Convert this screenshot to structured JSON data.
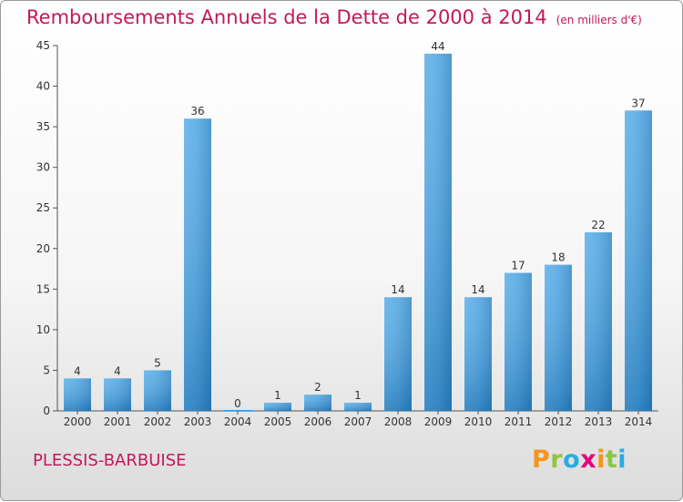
{
  "chart": {
    "title": "Remboursements Annuels de la Dette de 2000 à 2014",
    "unit": "(en milliers d'€)",
    "commune": "PLESSIS-BARBUISE",
    "brand": {
      "letters": [
        "P",
        "r",
        "o",
        "x",
        "i",
        "t",
        "i"
      ],
      "colors": [
        "#f7941d",
        "#8dc63f",
        "#29abe2",
        "#e5007e",
        "#f7941d",
        "#8dc63f",
        "#29abe2"
      ]
    }
  },
  "chart_data": {
    "type": "bar",
    "categories": [
      "2000",
      "2001",
      "2002",
      "2003",
      "2004",
      "2005",
      "2006",
      "2007",
      "2008",
      "2009",
      "2010",
      "2011",
      "2012",
      "2013",
      "2014"
    ],
    "values": [
      4,
      4,
      5,
      36,
      0,
      1,
      2,
      1,
      14,
      44,
      14,
      17,
      18,
      22,
      37
    ],
    "title": "Remboursements Annuels de la Dette de 2000 à 2014",
    "ylim": [
      0,
      45
    ],
    "yticks": [
      0,
      5,
      10,
      15,
      20,
      25,
      30,
      35,
      40,
      45
    ],
    "grid": false,
    "bar_color": "#3a93d6"
  }
}
